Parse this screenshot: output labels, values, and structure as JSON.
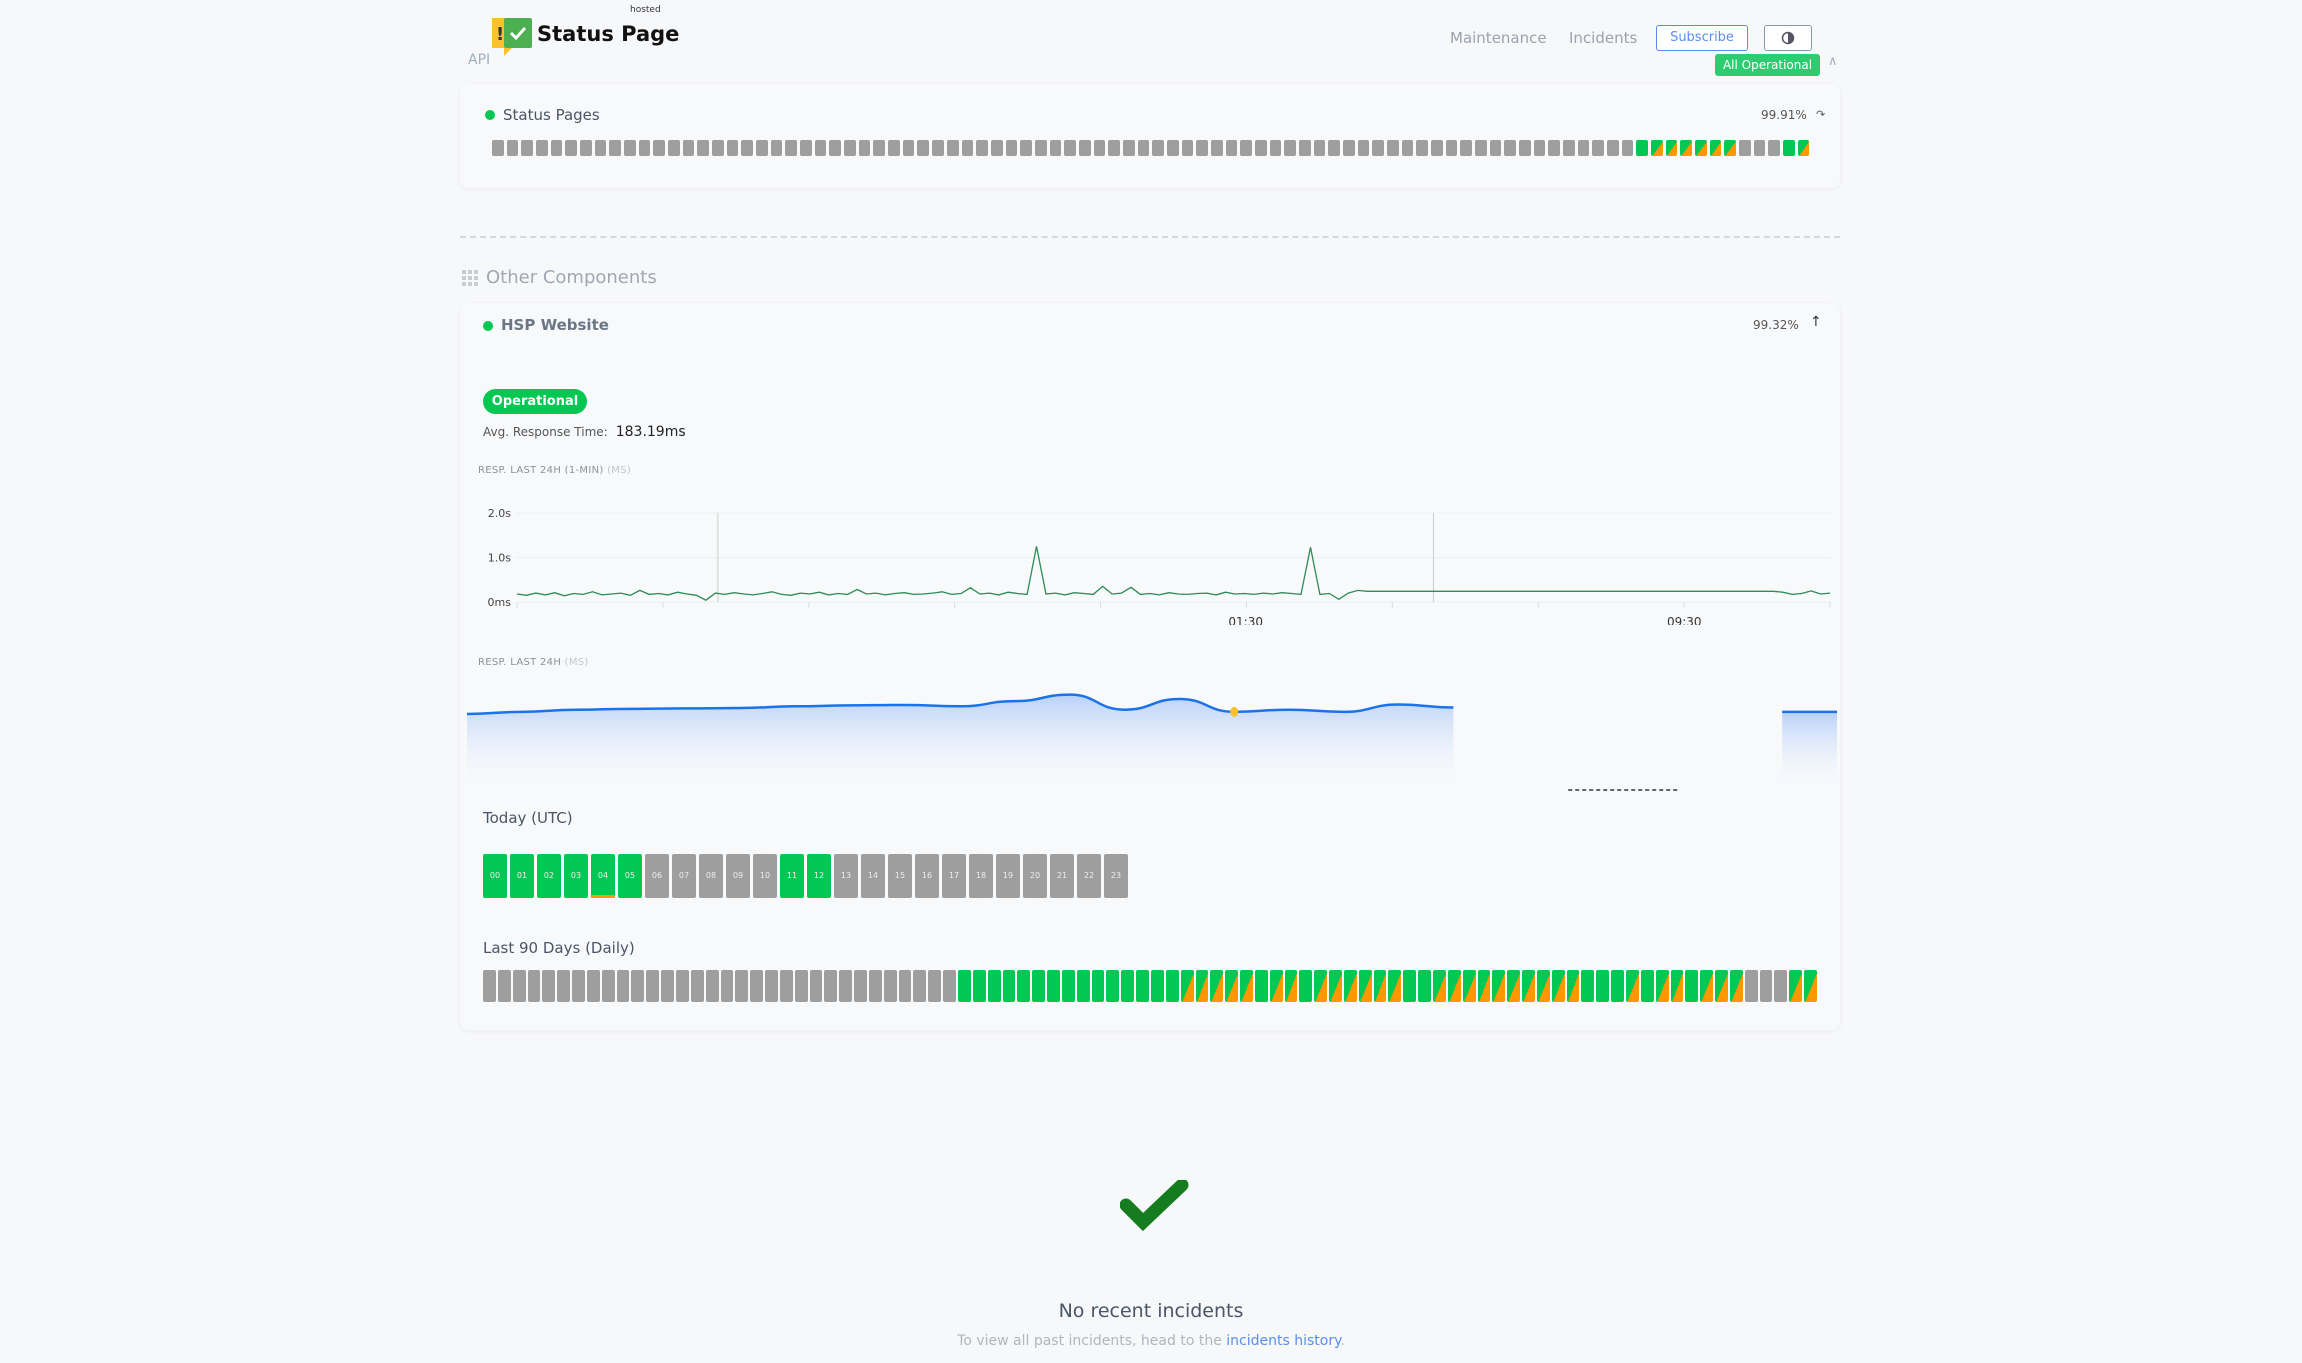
{
  "header": {
    "logo_text": "Status Page",
    "logo_sup": "hosted",
    "api_label": "API",
    "nav": [
      "Maintenance",
      "Incidents"
    ],
    "subscribe_label": "Subscribe",
    "overall_status": "All Operational"
  },
  "api_group": {
    "component": {
      "name": "Status Pages",
      "uptime": "99.91%",
      "days": "xxxxxxxxxxxxxxxxxxxxxxxxxxxxxxxxxxxxxxxxxxxxxxxxxxxxxxxxxxxxxxxxxxxxxxxxxxxxxxgppppppxxxgp"
    }
  },
  "other_group": {
    "title": "Other Components",
    "component": {
      "name": "HSP Website",
      "uptime": "99.32%",
      "status": "Operational",
      "avg_label": "Avg. Response Time:",
      "avg_value": "183.19ms",
      "chart1_label": "RESP. LAST 24H (1-MIN)",
      "chart1_unit": "(MS)",
      "chart2_label": "RESP. LAST 24H",
      "chart2_unit": "(MS)",
      "today_label": "Today (UTC)",
      "hours": [
        {
          "h": "00",
          "s": "g"
        },
        {
          "h": "01",
          "s": "g"
        },
        {
          "h": "02",
          "s": "g"
        },
        {
          "h": "03",
          "s": "g"
        },
        {
          "h": "04",
          "s": "p"
        },
        {
          "h": "05",
          "s": "g"
        },
        {
          "h": "06",
          "s": "x"
        },
        {
          "h": "07",
          "s": "x"
        },
        {
          "h": "08",
          "s": "x"
        },
        {
          "h": "09",
          "s": "x"
        },
        {
          "h": "10",
          "s": "x"
        },
        {
          "h": "11",
          "s": "g"
        },
        {
          "h": "12",
          "s": "g"
        },
        {
          "h": "13",
          "s": "x"
        },
        {
          "h": "14",
          "s": "x"
        },
        {
          "h": "15",
          "s": "x"
        },
        {
          "h": "16",
          "s": "x"
        },
        {
          "h": "17",
          "s": "x"
        },
        {
          "h": "18",
          "s": "x"
        },
        {
          "h": "19",
          "s": "x"
        },
        {
          "h": "20",
          "s": "x"
        },
        {
          "h": "21",
          "s": "x"
        },
        {
          "h": "22",
          "s": "x"
        },
        {
          "h": "23",
          "s": "x"
        }
      ],
      "days_label": "Last 90 Days (Daily)",
      "days": "xxxxxxxxxxxxxxxxxxxxxxxxxxxxxxxxgggggggggggggggpppppgppgppppppggppppppppppgggpgppgpppxxxpp"
    }
  },
  "chart_data": [
    {
      "type": "line",
      "title": "RESP. LAST 24H (1-MIN) (MS)",
      "y_ticks": [
        "2.0s",
        "1.0s",
        "0ms"
      ],
      "ylim": [
        0,
        2000
      ],
      "x_ticks": [
        "01:30",
        "09:30"
      ],
      "color": "#2e8b57",
      "values": [
        180,
        150,
        200,
        160,
        210,
        140,
        190,
        170,
        230,
        160,
        180,
        200,
        150,
        260,
        170,
        190,
        160,
        220,
        180,
        150,
        40,
        200,
        170,
        210,
        180,
        160,
        190,
        230,
        170,
        150,
        200,
        180,
        220,
        160,
        190,
        170,
        280,
        180,
        200,
        160,
        190,
        210,
        170,
        180,
        200,
        230,
        170,
        190,
        320,
        180,
        200,
        160,
        220,
        190,
        170,
        1250,
        180,
        200,
        160,
        210,
        190,
        170,
        350,
        180,
        200,
        330,
        170,
        190,
        160,
        210,
        180,
        170,
        190,
        200,
        160,
        220,
        180,
        190,
        170,
        200,
        180,
        210,
        190,
        170,
        1230,
        170,
        190,
        60,
        200,
        260,
        240,
        240,
        240,
        240,
        240,
        240,
        240,
        240,
        240,
        240,
        240,
        240,
        240,
        240,
        240,
        240,
        240,
        240,
        240,
        240,
        240,
        240,
        240,
        240,
        240,
        240,
        240,
        240,
        240,
        240,
        240,
        240,
        240,
        240,
        240,
        240,
        240,
        240,
        240,
        240,
        240,
        240,
        240,
        240,
        220,
        170,
        190,
        250,
        180,
        200
      ]
    },
    {
      "type": "area",
      "title": "RESP. LAST 24H (MS)",
      "color": "#1a73e8",
      "highlight_color": "#fbc02d",
      "values": [
        200,
        205,
        210,
        212,
        213,
        214,
        218,
        220,
        221,
        218,
        230,
        245,
        210,
        235,
        205,
        210,
        205,
        222,
        215,
        null,
        null,
        null,
        null,
        null,
        205,
        205
      ],
      "highlight_index": 14
    }
  ],
  "incidents": {
    "title": "No recent incidents",
    "sub_prefix": "To view all past incidents, head to the",
    "link": "incidents history",
    "sub_suffix": "."
  }
}
